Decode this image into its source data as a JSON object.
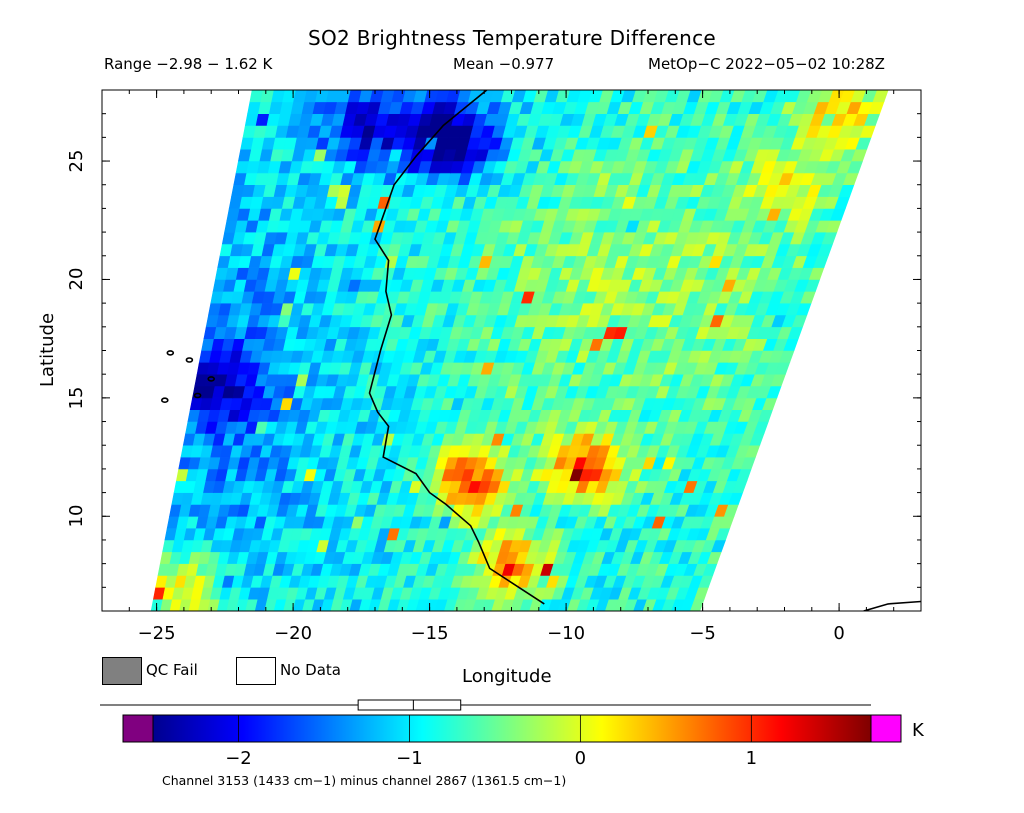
{
  "chart_data": {
    "type": "heatmap",
    "title": "SO2 Brightness Temperature Difference",
    "subtitle": {
      "range": "Range −2.98 − 1.62 K",
      "mean": "Mean −0.977",
      "source": "MetOp−C 2022−05−02 10:28Z"
    },
    "xlabel": "Longitude",
    "ylabel": "Latitude",
    "xlim": [
      -27,
      3
    ],
    "ylim": [
      6,
      28
    ],
    "x_ticks": [
      {
        "value": -25,
        "label": "−25"
      },
      {
        "value": -20,
        "label": "−20"
      },
      {
        "value": -15,
        "label": "−15"
      },
      {
        "value": -10,
        "label": "−10"
      },
      {
        "value": -5,
        "label": "−5"
      },
      {
        "value": 0,
        "label": "0"
      }
    ],
    "y_ticks": [
      {
        "value": 10,
        "label": "10"
      },
      {
        "value": 15,
        "label": "15"
      },
      {
        "value": 20,
        "label": "20"
      },
      {
        "value": 25,
        "label": "25"
      }
    ],
    "swath": {
      "corners": [
        [
          -25.2,
          6
        ],
        [
          -21.5,
          28
        ],
        [
          1.8,
          28
        ],
        [
          -5.1,
          6
        ]
      ]
    },
    "features": [
      {
        "lon": -13.5,
        "lat": 11.5,
        "value": 1.0
      },
      {
        "lon": -9.3,
        "lat": 12.1,
        "value": 0.9
      },
      {
        "lon": -14.5,
        "lat": 26.0,
        "value": -2.2
      },
      {
        "lon": -12.0,
        "lat": 8.0,
        "value": 0.6
      },
      {
        "lon": -17.5,
        "lat": 26.5,
        "value": -2.1
      },
      {
        "lon": -24.0,
        "lat": 7.0,
        "value": 0.5
      },
      {
        "lon": 0.0,
        "lat": 27.0,
        "value": 0.3
      },
      {
        "lon": -2.0,
        "lat": 24.0,
        "value": 0.0
      },
      {
        "lon": -23.0,
        "lat": 15.5,
        "value": -2.0
      }
    ],
    "coastline": [
      [
        -12.8,
        28.1
      ],
      [
        -14.5,
        26.5
      ],
      [
        -15.5,
        25.2
      ],
      [
        -16.3,
        24.0
      ],
      [
        -17.0,
        21.7
      ],
      [
        -16.5,
        20.8
      ],
      [
        -16.6,
        19.5
      ],
      [
        -16.4,
        18.5
      ],
      [
        -16.8,
        17.0
      ],
      [
        -17.2,
        15.2
      ],
      [
        -16.9,
        14.4
      ],
      [
        -16.5,
        13.8
      ],
      [
        -16.7,
        12.5
      ],
      [
        -15.5,
        11.8
      ],
      [
        -15.0,
        11.0
      ],
      [
        -14.4,
        10.5
      ],
      [
        -13.5,
        9.6
      ],
      [
        -13.2,
        8.9
      ],
      [
        -12.8,
        7.8
      ],
      [
        -11.6,
        6.9
      ],
      [
        -10.8,
        6.3
      ]
    ],
    "coastline_east": [
      [
        0.9,
        6.0
      ],
      [
        1.8,
        6.3
      ],
      [
        3.0,
        6.4
      ]
    ],
    "islands": [
      [
        -24.5,
        16.9
      ],
      [
        -23.8,
        16.6
      ],
      [
        -23.0,
        15.8
      ],
      [
        -23.5,
        15.1
      ],
      [
        -24.7,
        14.9
      ]
    ],
    "colorbar": {
      "min": -2.5,
      "max": 1.7,
      "ticks": [
        {
          "value": -2,
          "label": "−2"
        },
        {
          "value": -1,
          "label": "−1"
        },
        {
          "value": 0,
          "label": "0"
        },
        {
          "value": 1,
          "label": "1"
        }
      ],
      "unit": "K",
      "under_color": "#800080",
      "over_color": "#ff00ff",
      "boxplot": {
        "min": -2.98,
        "q1": -1.3,
        "median": -0.977,
        "q3": -0.7,
        "max": 1.62
      }
    },
    "legend": {
      "qc_fail": {
        "label": "QC Fail",
        "color": "#808080"
      },
      "no_data": {
        "label": "No Data",
        "color": "#ffffff"
      }
    },
    "footnote": "Channel 3153 (1433 cm−1) minus channel 2867 (1361.5 cm−1)"
  }
}
